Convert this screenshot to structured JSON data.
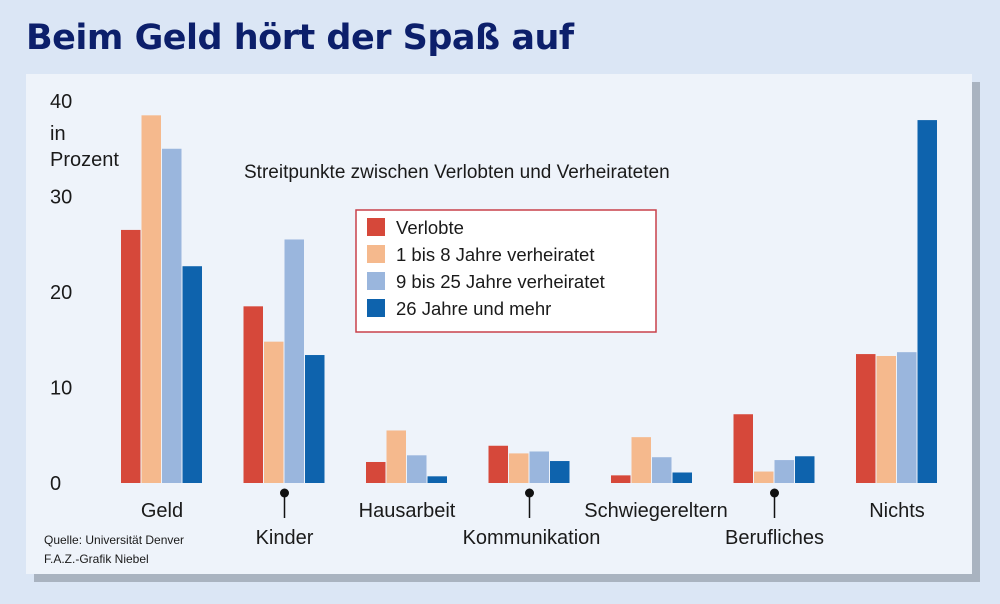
{
  "title": "Beim Geld hört der Spaß auf",
  "source_lines": [
    "Quelle: Universität Denver",
    "F.A.Z.-Grafik Niebel"
  ],
  "colors": {
    "background": "#dbe6f5",
    "panel": "#eef3fa",
    "title": "#0c1f6b",
    "legend_border": "#c9414a"
  },
  "chart_data": {
    "type": "bar",
    "subtitle": "Streitpunkte zwischen Verlobten und Verheirateten",
    "ylabel": "in Prozent",
    "ylabel_lines": [
      "in",
      "Prozent"
    ],
    "ylim": [
      0,
      40
    ],
    "yticks": [
      0,
      10,
      20,
      30,
      40
    ],
    "grid": false,
    "legend_position": "center-top",
    "categories": [
      "Geld",
      "Kinder",
      "Hausarbeit",
      "Kommunikation",
      "Schwiegereltern",
      "Berufliches",
      "Nichts"
    ],
    "series": [
      {
        "name": "Verlobte",
        "color": "#d6483a",
        "values": [
          26.5,
          18.5,
          2.2,
          3.9,
          0.8,
          7.2,
          13.5
        ]
      },
      {
        "name": "1 bis 8 Jahre verheiratet",
        "color": "#f5b98d",
        "values": [
          38.5,
          14.8,
          5.5,
          3.1,
          4.8,
          1.2,
          13.3
        ]
      },
      {
        "name": "9 bis 25 Jahre verheiratet",
        "color": "#9ab6dd",
        "values": [
          35.0,
          25.5,
          2.9,
          3.3,
          2.7,
          2.4,
          13.7
        ]
      },
      {
        "name": "26 Jahre und mehr",
        "color": "#0e63ad",
        "values": [
          22.7,
          13.4,
          0.7,
          2.3,
          1.1,
          2.8,
          38.0
        ]
      }
    ]
  }
}
